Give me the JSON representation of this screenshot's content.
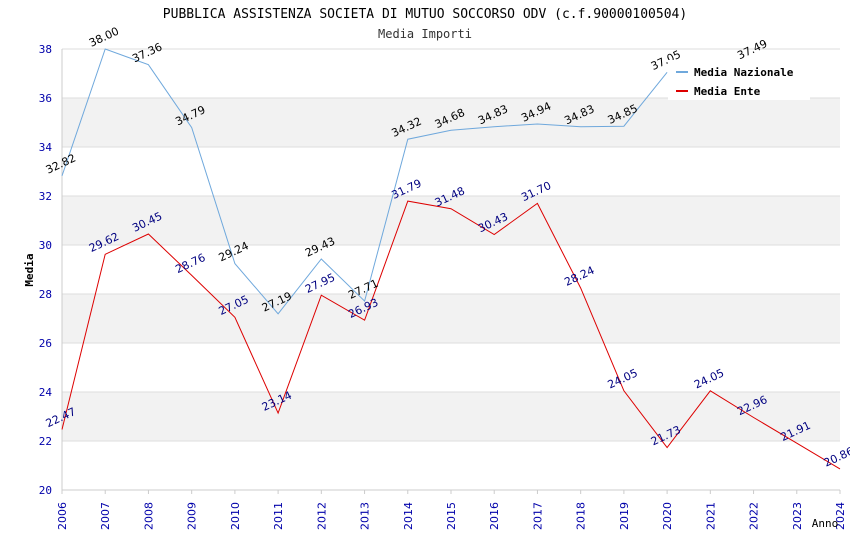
{
  "chart_data": {
    "type": "line",
    "title": "PUBBLICA ASSISTENZA SOCIETA DI MUTUO SOCCORSO ODV (c.f.90000100504)",
    "subtitle": "Media Importi",
    "xlabel": "Anno",
    "ylabel": "Media",
    "x": [
      "2006",
      "2007",
      "2008",
      "2009",
      "2010",
      "2011",
      "2012",
      "2013",
      "2014",
      "2015",
      "2016",
      "2017",
      "2018",
      "2019",
      "2020",
      "2021",
      "2022",
      "2023",
      "2024"
    ],
    "ylim": [
      20,
      38
    ],
    "yticks": [
      20,
      22,
      24,
      26,
      28,
      30,
      32,
      34,
      36,
      38
    ],
    "grid": "horizontal, alternating bands",
    "legend_position": "top-right",
    "series": [
      {
        "name": "Media Nazionale",
        "color": "#6fa8dc",
        "values": [
          32.82,
          38.0,
          37.36,
          34.79,
          29.24,
          27.19,
          29.43,
          27.71,
          34.32,
          34.68,
          34.83,
          34.94,
          34.83,
          34.85,
          37.05,
          null,
          37.49,
          null,
          null
        ],
        "labels": [
          "32.82",
          "38.00",
          "37.36",
          "34.79",
          "29.24",
          "27.19",
          "29.43",
          "27.71",
          "34.32",
          "34.68",
          "34.83",
          "34.94",
          "34.83",
          "34.85",
          "37.05",
          null,
          "37.49",
          null,
          null
        ],
        "label_color": "#000000"
      },
      {
        "name": "Media Ente",
        "color": "#dd0000",
        "values": [
          22.47,
          29.62,
          30.45,
          28.76,
          27.05,
          23.14,
          27.95,
          26.93,
          31.79,
          31.48,
          30.43,
          31.7,
          28.24,
          24.05,
          21.73,
          24.05,
          22.96,
          21.91,
          20.86
        ],
        "labels": [
          "22.47",
          "29.62",
          "30.45",
          "28.76",
          "27.05",
          "23.14",
          "27.95",
          "26.93",
          "31.79",
          "31.48",
          "30.43",
          "31.70",
          "28.24",
          "24.05",
          "21.73",
          "24.05",
          "22.96",
          "21.91",
          "20.86"
        ],
        "label_color": "#000080"
      }
    ]
  }
}
